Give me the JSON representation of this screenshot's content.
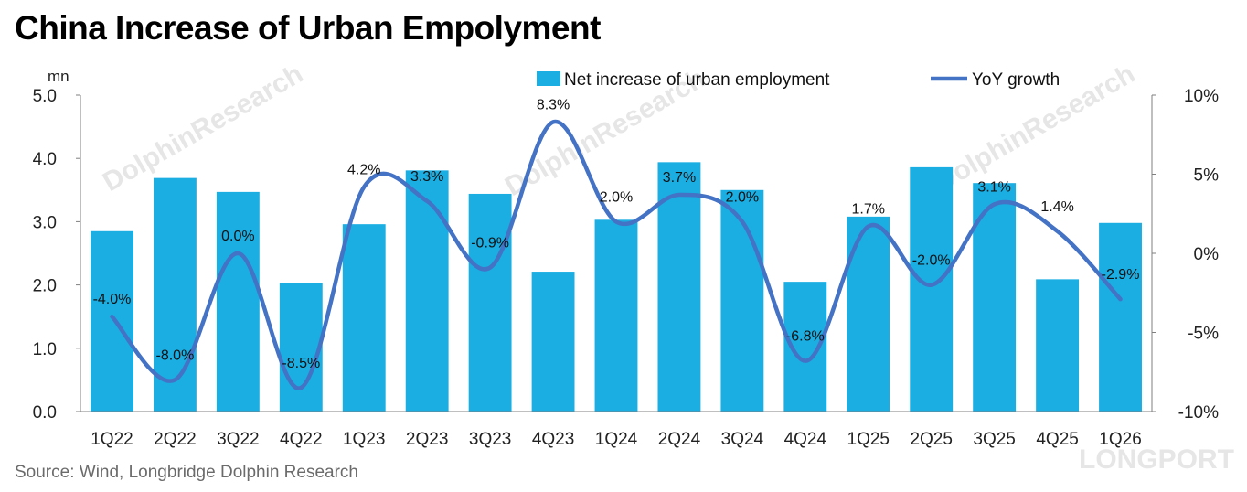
{
  "title": "China Increase of Urban Empolyment",
  "source": "Source: Wind, Longbridge Dolphin Research",
  "watermark": "DolphinResearch",
  "brand_mark": "LONGPORT",
  "colors": {
    "bar": "#1aaee3",
    "line": "#4472c4",
    "axis": "#7f7f7f",
    "watermark": "#e6e6e6"
  },
  "chart_data": {
    "type": "bar",
    "combo": "bar + line (secondary axis)",
    "categories": [
      "1Q22",
      "2Q22",
      "3Q22",
      "4Q22",
      "1Q23",
      "2Q23",
      "3Q23",
      "4Q23",
      "1Q24",
      "2Q24",
      "3Q24",
      "4Q24",
      "1Q25",
      "2Q25",
      "3Q25",
      "4Q25",
      "1Q26"
    ],
    "series": [
      {
        "name": "Net increase of urban employment",
        "type": "bar",
        "axis": "left",
        "values": [
          2.85,
          3.69,
          3.47,
          2.03,
          2.96,
          3.81,
          3.44,
          2.21,
          3.03,
          3.94,
          3.5,
          2.05,
          3.08,
          3.86,
          3.61,
          2.09,
          2.98
        ]
      },
      {
        "name": "YoY growth",
        "type": "line",
        "axis": "right",
        "values": [
          -4.0,
          -8.0,
          0.0,
          -8.5,
          4.2,
          3.3,
          -0.9,
          8.3,
          2.0,
          3.7,
          2.0,
          -6.8,
          1.7,
          -2.0,
          3.1,
          1.4,
          -2.9
        ],
        "labels": [
          "-4.0%",
          "-8.0%",
          "0.0%",
          "-8.5%",
          "4.2%",
          "3.3%",
          "-0.9%",
          "8.3%",
          "2.0%",
          "3.7%",
          "2.0%",
          "-6.8%",
          "1.7%",
          "-2.0%",
          "3.1%",
          "1.4%",
          "-2.9%"
        ]
      }
    ],
    "ylabel": "mn",
    "ylim": [
      0,
      5
    ],
    "yticks": [
      "0.0",
      "1.0",
      "2.0",
      "3.0",
      "4.0",
      "5.0"
    ],
    "y2lim": [
      -10,
      10
    ],
    "y2ticks": [
      "-10%",
      "-5%",
      "0%",
      "5%",
      "10%"
    ],
    "legend": "top-right",
    "grid": false
  }
}
